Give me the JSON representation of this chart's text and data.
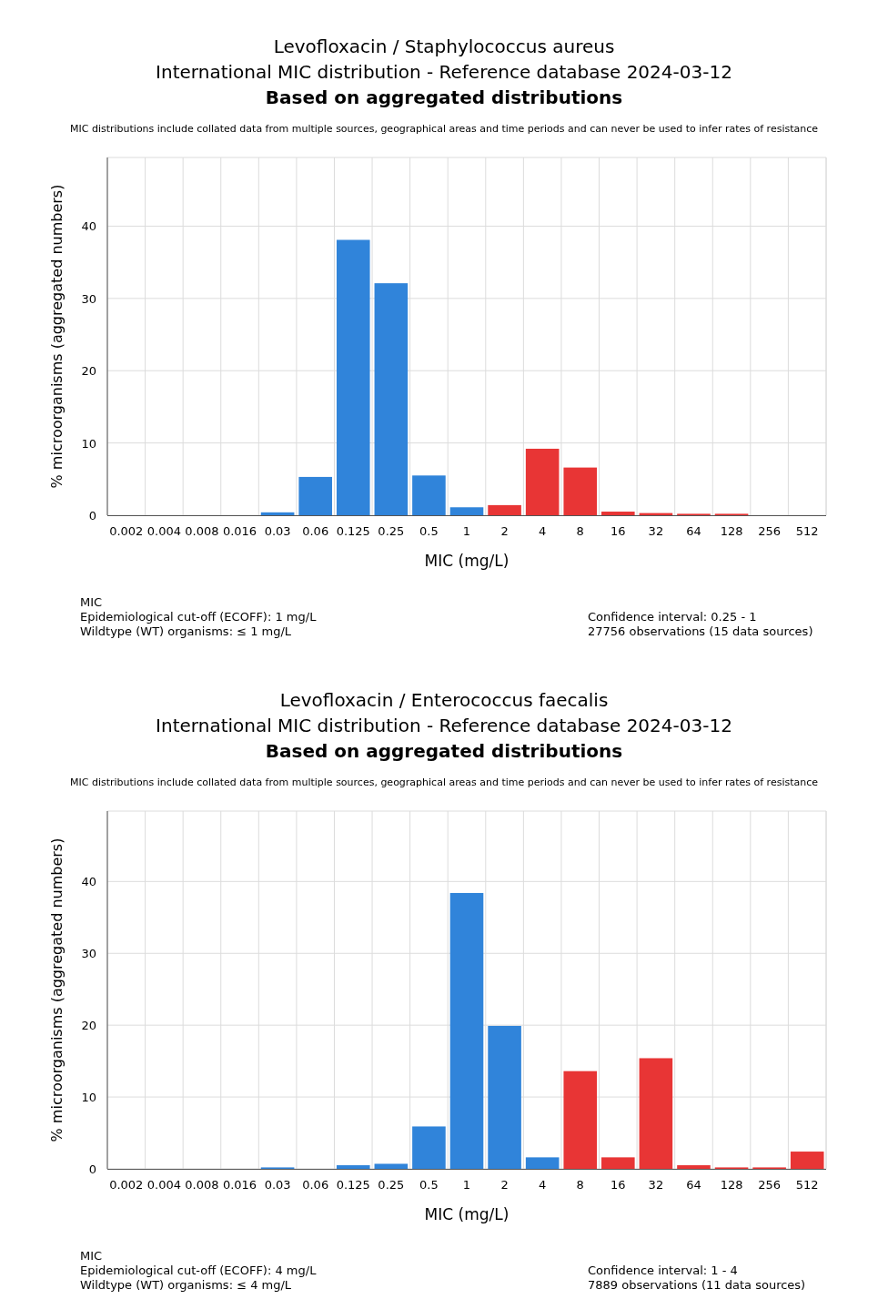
{
  "chart_data": [
    {
      "type": "bar",
      "title": "Levofloxacin / Staphylococcus aureus",
      "subtitle": "International MIC distribution - Reference database 2024-03-12",
      "xlabel": "MIC (mg/L)",
      "ylabel": "% microorganisms (aggregated numbers)",
      "categories": [
        "0.002",
        "0.004",
        "0.008",
        "0.016",
        "0.03",
        "0.06",
        "0.125",
        "0.25",
        "0.5",
        "1",
        "2",
        "4",
        "8",
        "16",
        "32",
        "64",
        "128",
        "256",
        "512"
      ],
      "values": [
        0,
        0,
        0,
        0,
        0.4,
        5.3,
        38.1,
        32.1,
        5.5,
        1.1,
        1.4,
        9.2,
        6.6,
        0.5,
        0.3,
        0.2,
        0.2,
        0,
        0
      ],
      "colors": [
        "#3084da",
        "#3084da",
        "#3084da",
        "#3084da",
        "#3084da",
        "#3084da",
        "#3084da",
        "#3084da",
        "#3084da",
        "#3084da",
        "#e83535",
        "#e83535",
        "#e83535",
        "#e83535",
        "#e83535",
        "#e83535",
        "#e83535",
        "#e83535",
        "#e83535"
      ],
      "ylim": [
        0,
        49.5
      ],
      "yticks": [
        0,
        10,
        20,
        30,
        40
      ],
      "grid": true,
      "annotations": [
        "Based on aggregated distributions",
        "MIC distributions include collated data from multiple sources, geographical areas and time periods and can never be used to infer rates of resistance",
        "MIC",
        "Epidemiological cut-off (ECOFF): 1 mg/L",
        "Wildtype (WT) organisms: ≤ 1 mg/L",
        "Confidence interval: 0.25 - 1",
        "27756 observations (15 data sources)"
      ]
    },
    {
      "type": "bar",
      "title": "Levofloxacin / Enterococcus faecalis",
      "subtitle": "International MIC distribution - Reference database 2024-03-12",
      "xlabel": "MIC (mg/L)",
      "ylabel": "% microorganisms (aggregated numbers)",
      "categories": [
        "0.002",
        "0.004",
        "0.008",
        "0.016",
        "0.03",
        "0.06",
        "0.125",
        "0.25",
        "0.5",
        "1",
        "2",
        "4",
        "8",
        "16",
        "32",
        "64",
        "128",
        "256",
        "512"
      ],
      "values": [
        0,
        0,
        0,
        0,
        0.2,
        0,
        0.5,
        0.7,
        5.9,
        38.4,
        19.9,
        1.6,
        13.6,
        1.6,
        15.4,
        0.5,
        0.2,
        0.2,
        2.4
      ],
      "colors": [
        "#3084da",
        "#3084da",
        "#3084da",
        "#3084da",
        "#3084da",
        "#3084da",
        "#3084da",
        "#3084da",
        "#3084da",
        "#3084da",
        "#3084da",
        "#3084da",
        "#e83535",
        "#e83535",
        "#e83535",
        "#e83535",
        "#e83535",
        "#e83535",
        "#e83535"
      ],
      "ylim": [
        0,
        49.8
      ],
      "yticks": [
        0,
        10,
        20,
        30,
        40
      ],
      "grid": true,
      "annotations": [
        "Based on aggregated distributions",
        "MIC distributions include collated data from multiple sources, geographical areas and time periods and can never be used to infer rates of resistance",
        "MIC",
        "Epidemiological cut-off (ECOFF): 4 mg/L",
        "Wildtype (WT) organisms: ≤ 4 mg/L",
        "Confidence interval: 1 - 4",
        "7889 observations (11 data sources)"
      ]
    }
  ]
}
